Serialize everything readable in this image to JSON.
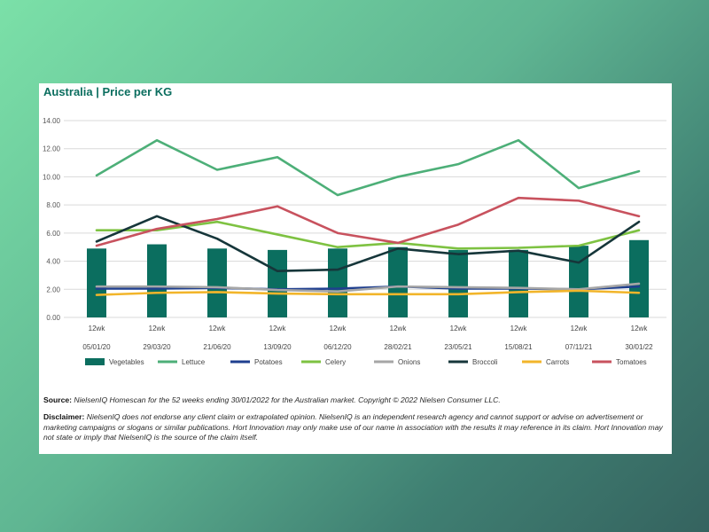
{
  "chart_data": {
    "type": "bar+line",
    "title": "Australia | Price per KG",
    "ylim": [
      0,
      14
    ],
    "yticks": [
      "0.00",
      "2.00",
      "4.00",
      "6.00",
      "8.00",
      "10.00",
      "12.00",
      "14.00"
    ],
    "grid": true,
    "legend_position": "bottom",
    "categories": [
      [
        "12wk",
        "05/01/20"
      ],
      [
        "12wk",
        "29/03/20"
      ],
      [
        "12wk",
        "21/06/20"
      ],
      [
        "12wk",
        "13/09/20"
      ],
      [
        "12wk",
        "06/12/20"
      ],
      [
        "12wk",
        "28/02/21"
      ],
      [
        "12wk",
        "23/05/21"
      ],
      [
        "12wk",
        "15/08/21"
      ],
      [
        "12wk",
        "07/11/21"
      ],
      [
        "12wk",
        "30/01/22"
      ]
    ],
    "series": [
      {
        "name": "Vegetables",
        "kind": "bar",
        "color": "#0b6e5f",
        "values": [
          4.9,
          5.2,
          4.9,
          4.8,
          4.9,
          5.0,
          4.8,
          4.8,
          5.1,
          5.5
        ]
      },
      {
        "name": "Lettuce",
        "kind": "line",
        "color": "#4daf78",
        "values": [
          10.1,
          12.6,
          10.5,
          11.4,
          8.7,
          10.0,
          10.9,
          12.6,
          9.2,
          10.4
        ]
      },
      {
        "name": "Potatoes",
        "kind": "line",
        "color": "#1f3f8f",
        "values": [
          2.05,
          2.05,
          2.1,
          2.0,
          2.05,
          2.2,
          2.05,
          2.05,
          2.0,
          2.2
        ]
      },
      {
        "name": "Celery",
        "kind": "line",
        "color": "#7ec242",
        "values": [
          6.2,
          6.2,
          6.8,
          5.9,
          5.0,
          5.3,
          4.9,
          4.95,
          5.1,
          6.2
        ]
      },
      {
        "name": "Onions",
        "kind": "line",
        "color": "#a6a6a6",
        "values": [
          2.2,
          2.2,
          2.15,
          1.95,
          1.85,
          2.2,
          2.15,
          2.1,
          2.0,
          2.4
        ]
      },
      {
        "name": "Broccoli",
        "kind": "line",
        "color": "#16363a",
        "values": [
          5.4,
          7.2,
          5.6,
          3.3,
          3.4,
          4.9,
          4.5,
          4.75,
          3.9,
          6.8
        ]
      },
      {
        "name": "Carrots",
        "kind": "line",
        "color": "#f2b52a",
        "values": [
          1.6,
          1.75,
          1.8,
          1.7,
          1.65,
          1.65,
          1.65,
          1.8,
          1.9,
          1.75
        ]
      },
      {
        "name": "Tomatoes",
        "kind": "line",
        "color": "#c8525e",
        "values": [
          5.1,
          6.3,
          7.0,
          7.9,
          6.0,
          5.3,
          6.6,
          8.5,
          8.3,
          7.2
        ]
      }
    ]
  },
  "source": {
    "label": "Source:",
    "text": "NielsenIQ Homescan for the 52 weeks ending 30/01/2022 for the Australian market. Copyright © 2022 Nielsen Consumer LLC."
  },
  "disclaimer": {
    "label": "Disclaimer:",
    "text": "NielsenIQ does not endorse any client claim or extrapolated opinion. NielsenIQ is an independent research agency and cannot support or advise on advertisement or marketing campaigns or slogans or similar publications. Hort Innovation may only make use of our name in association with the results it may reference in its claim. Hort Innovation may not state or imply that NielsenIQ is the source of the claim itself."
  }
}
